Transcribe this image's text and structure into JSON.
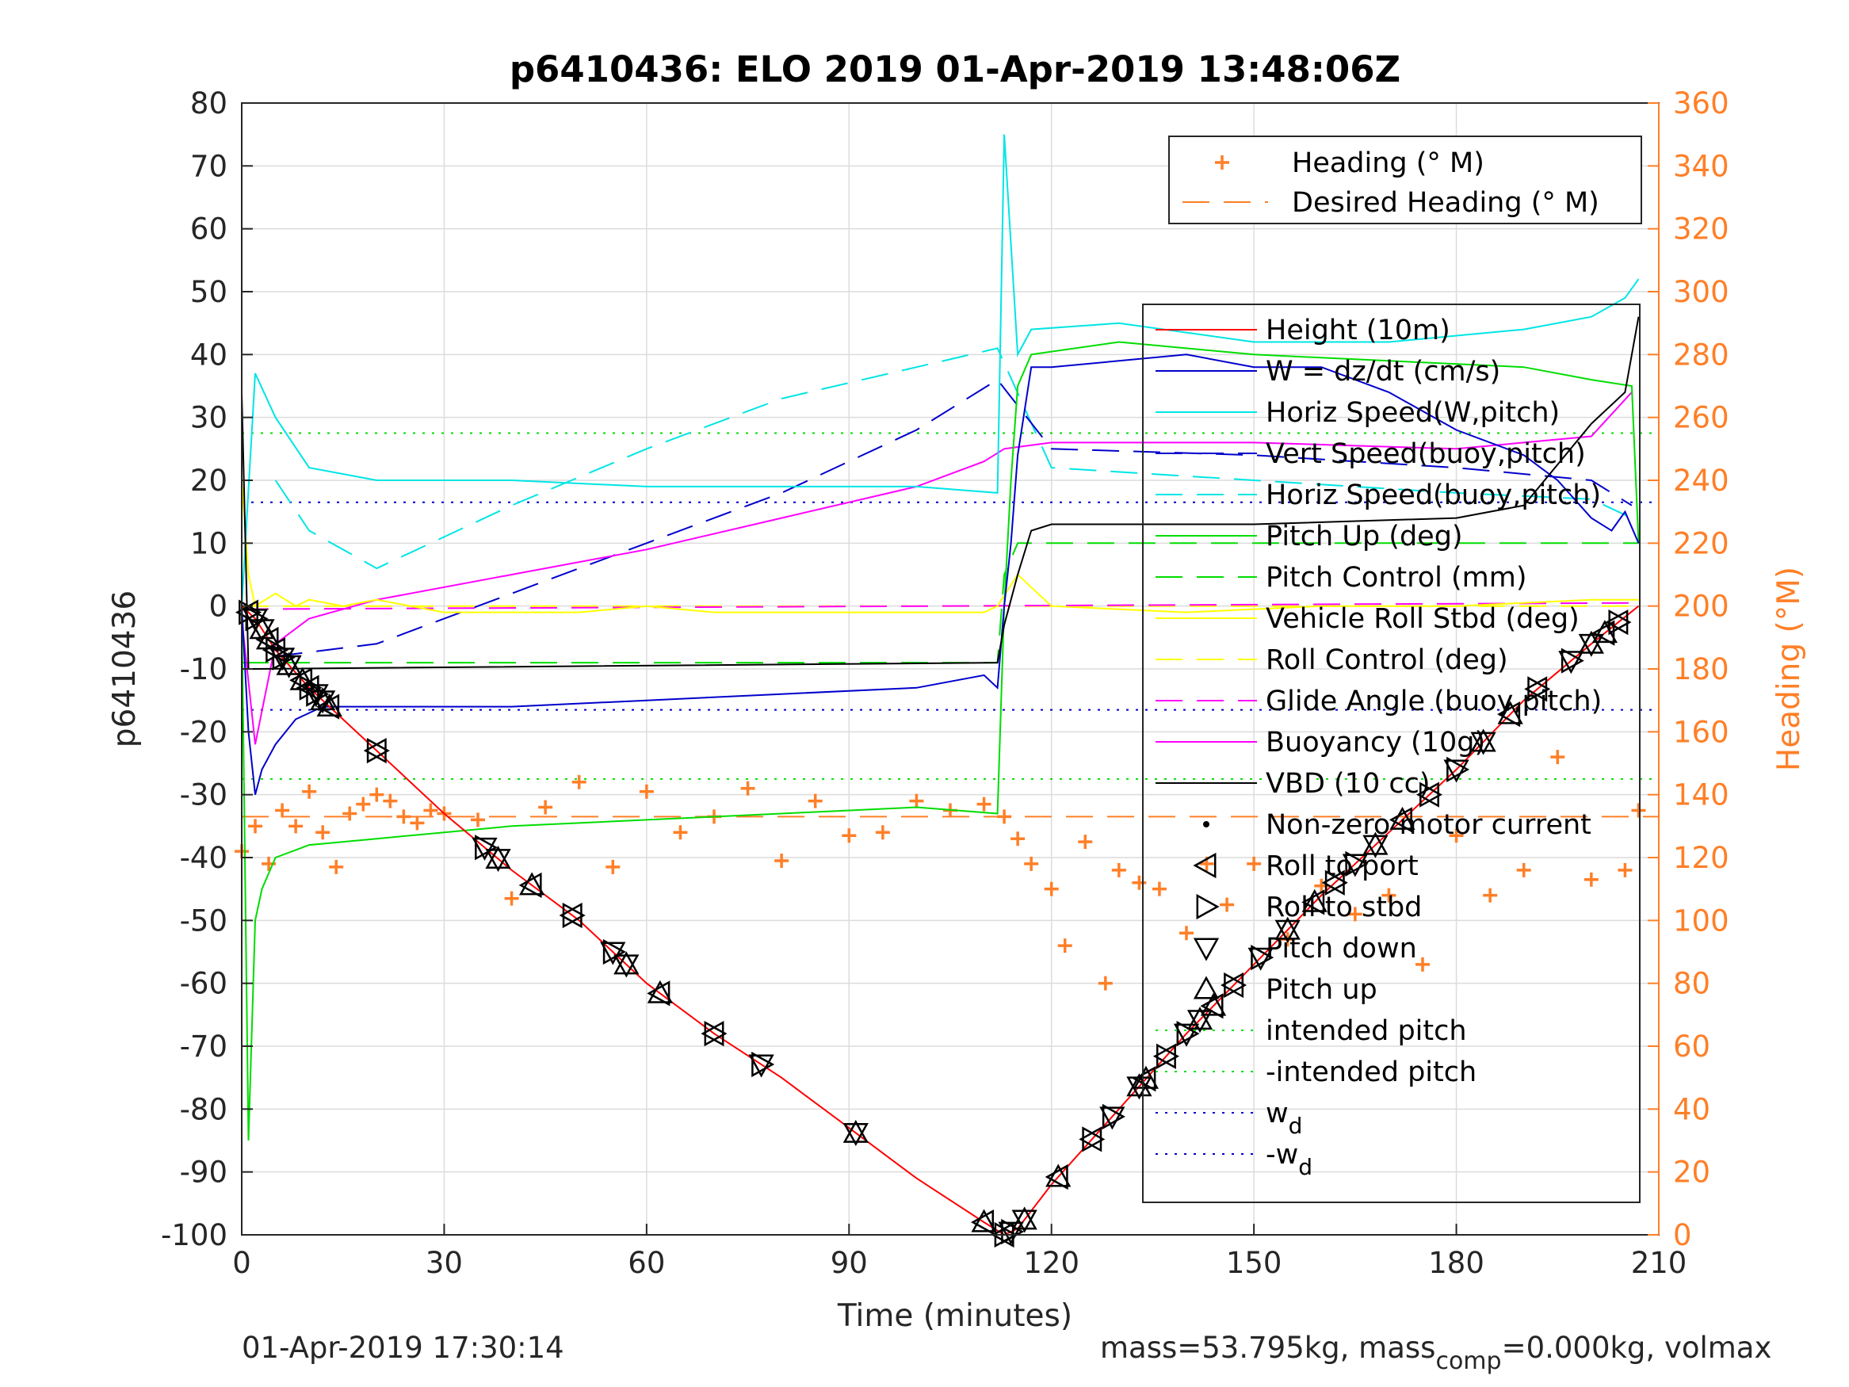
{
  "chart_data": {
    "type": "line",
    "title": "p6410436: ELO 2019 01-Apr-2019 13:48:06Z",
    "xlabel": "Time (minutes)",
    "ylabel": "p6410436",
    "y2label": "Heading (°M)",
    "xlim": [
      0,
      210
    ],
    "ylim": [
      -100,
      80
    ],
    "y2lim": [
      0,
      360
    ],
    "xticks": [
      "0",
      "30",
      "60",
      "90",
      "120",
      "150",
      "180",
      "210"
    ],
    "yticks": [
      "80",
      "70",
      "60",
      "50",
      "40",
      "30",
      "20",
      "10",
      "0",
      "-10",
      "-20",
      "-30",
      "-40",
      "-50",
      "-60",
      "-70",
      "-80",
      "-90",
      "-100"
    ],
    "y2ticks": [
      "360",
      "340",
      "320",
      "300",
      "280",
      "260",
      "240",
      "220",
      "200",
      "180",
      "160",
      "140",
      "120",
      "100",
      "80",
      "60",
      "40",
      "20",
      "0"
    ],
    "grid": true,
    "colors": {
      "height": "#ff0000",
      "w": "#0000cc",
      "horiz_w": "#00e5e5",
      "vert_buoy": "#0000cc",
      "horiz_buoy": "#00e5e5",
      "pitch_up": "#00dd00",
      "pitch_control": "#00dd00",
      "roll": "#ffff00",
      "roll_control": "#ffff00",
      "glide": "#ff00ff",
      "buoyancy": "#ff00ff",
      "vbd": "#000000",
      "heading": "#ff7f27",
      "axis": "#000000"
    },
    "series": [
      {
        "key": "height",
        "name": "Height (10m)",
        "x": [
          0,
          2,
          5,
          10,
          20,
          30,
          40,
          50,
          60,
          70,
          80,
          90,
          100,
          110,
          113,
          115,
          120,
          130,
          140,
          150,
          160,
          170,
          180,
          190,
          200,
          207
        ],
        "y": [
          0,
          -2,
          -7,
          -13,
          -23,
          -33,
          -42,
          -50,
          -60,
          -68,
          -75,
          -83,
          -91,
          -98,
          -100,
          -99,
          -92,
          -80,
          -68,
          -57,
          -46,
          -36,
          -26,
          -15,
          -6,
          0
        ]
      },
      {
        "key": "w",
        "name": "W = dz/dt (cm/s)",
        "x": [
          0,
          1,
          2,
          3,
          5,
          8,
          12,
          20,
          40,
          60,
          80,
          100,
          110,
          112,
          113,
          114,
          115,
          117,
          120,
          130,
          140,
          150,
          160,
          170,
          180,
          190,
          195,
          200,
          203,
          205,
          207
        ],
        "y": [
          0,
          -20,
          -30,
          -26,
          -22,
          -18,
          -16,
          -16,
          -16,
          -15,
          -14,
          -13,
          -11,
          -13,
          0,
          10,
          24,
          38,
          38,
          39,
          40,
          38,
          38,
          34,
          28,
          24,
          20,
          14,
          12,
          15,
          10
        ]
      },
      {
        "key": "horiz_w",
        "name": "Horiz Speed(W,pitch)",
        "x": [
          0,
          2,
          5,
          10,
          20,
          40,
          60,
          80,
          100,
          112,
          113,
          115,
          117,
          130,
          150,
          170,
          190,
          200,
          205,
          207
        ],
        "y": [
          0,
          37,
          30,
          22,
          20,
          20,
          19,
          19,
          19,
          18,
          75,
          40,
          44,
          45,
          42,
          42,
          44,
          46,
          49,
          52
        ]
      },
      {
        "key": "vert_buoy",
        "name": "Vert Speed(buoy,pitch)",
        "x": [
          5,
          20,
          40,
          60,
          80,
          100,
          112,
          120,
          150,
          180,
          200,
          206
        ],
        "y": [
          -8,
          -6,
          2,
          10,
          18,
          28,
          36,
          25,
          24,
          22,
          20,
          16
        ]
      },
      {
        "key": "horiz_buoy",
        "name": "Horiz Speed(buoy,pitch)",
        "x": [
          5,
          10,
          20,
          40,
          60,
          80,
          100,
          112,
          120,
          150,
          180,
          200,
          206
        ],
        "y": [
          20,
          12,
          6,
          16,
          25,
          33,
          38,
          41,
          22,
          20,
          18,
          17,
          14
        ]
      },
      {
        "key": "pitch_up",
        "name": "Pitch Up (deg)",
        "x": [
          0,
          1,
          2,
          3,
          5,
          10,
          20,
          40,
          60,
          80,
          100,
          112,
          113,
          114,
          115,
          117,
          130,
          150,
          170,
          190,
          200,
          206,
          207
        ],
        "y": [
          0,
          -85,
          -50,
          -45,
          -40,
          -38,
          -37,
          -35,
          -34,
          -33,
          -32,
          -33,
          0,
          20,
          35,
          40,
          42,
          40,
          39,
          38,
          36,
          35,
          10
        ]
      },
      {
        "key": "pitch_control",
        "name": "Pitch Control (mm)",
        "x": [
          0,
          10,
          60,
          110,
          112,
          113,
          115,
          150,
          200,
          207
        ],
        "y": [
          -9,
          -9,
          -9,
          -9,
          -9,
          5,
          10,
          10,
          10,
          10
        ]
      },
      {
        "key": "roll",
        "name": "Vehicle Roll Stbd (deg)",
        "x": [
          0,
          1,
          2,
          5,
          8,
          10,
          15,
          20,
          30,
          40,
          50,
          60,
          70,
          80,
          90,
          100,
          110,
          112,
          115,
          120,
          140,
          160,
          180,
          200,
          207
        ],
        "y": [
          20,
          5,
          0,
          2,
          0,
          1,
          0,
          1,
          -1,
          -1,
          -1,
          0,
          -1,
          -1,
          -1,
          -1,
          -1,
          0,
          5,
          0,
          -1,
          0,
          0,
          1,
          1
        ]
      },
      {
        "key": "roll_control",
        "name": "Roll Control (deg)",
        "x": [
          0,
          60,
          112,
          113,
          150,
          207
        ],
        "y": [
          0,
          0,
          0,
          0,
          0,
          0
        ]
      },
      {
        "key": "glide",
        "name": "Glide Angle (buoy,pitch)",
        "x": [
          0,
          207
        ],
        "y": [
          -0.5,
          0.5
        ]
      },
      {
        "key": "buoyancy",
        "name": "Buoyancy (10g)",
        "x": [
          0,
          2,
          5,
          10,
          20,
          40,
          60,
          80,
          100,
          110,
          113,
          120,
          150,
          180,
          200,
          206
        ],
        "y": [
          -2,
          -22,
          -6,
          -2,
          1,
          5,
          9,
          14,
          19,
          23,
          25,
          26,
          26,
          25,
          27,
          34
        ]
      },
      {
        "key": "vbd",
        "name": "VBD (10 cc)",
        "x": [
          0,
          1,
          2,
          112,
          113,
          115,
          117,
          120,
          150,
          180,
          190,
          200,
          205,
          207
        ],
        "y": [
          34,
          -10,
          -10,
          -9,
          -3,
          5,
          12,
          13,
          13,
          14,
          16,
          29,
          34,
          46
        ]
      }
    ],
    "heading": {
      "name": "Heading (° M)",
      "desired_name": "Desired Heading (° M)",
      "desired": 133,
      "x": [
        0,
        2,
        4,
        6,
        8,
        10,
        12,
        14,
        16,
        18,
        20,
        22,
        24,
        26,
        28,
        30,
        35,
        40,
        45,
        50,
        55,
        60,
        65,
        70,
        75,
        80,
        85,
        90,
        95,
        100,
        105,
        110,
        113,
        115,
        117,
        120,
        122,
        125,
        128,
        130,
        133,
        136,
        140,
        143,
        146,
        150,
        155,
        160,
        165,
        170,
        175,
        180,
        185,
        190,
        195,
        200,
        205,
        207
      ],
      "y": [
        122,
        130,
        118,
        135,
        130,
        141,
        128,
        117,
        134,
        137,
        140,
        138,
        133,
        131,
        135,
        134,
        132,
        107,
        136,
        144,
        117,
        141,
        128,
        133,
        142,
        119,
        138,
        127,
        128,
        138,
        135,
        137,
        133,
        126,
        118,
        110,
        92,
        125,
        80,
        116,
        112,
        110,
        96,
        118,
        105,
        118,
        94,
        111,
        102,
        108,
        86,
        127,
        108,
        116,
        152,
        113,
        116,
        135
      ]
    },
    "legend_top": {
      "position": "top-right",
      "entries": [
        {
          "label": "Heading (° M)",
          "symbol": "plus"
        },
        {
          "label": "Desired Heading (° M)",
          "symbol": "dash"
        }
      ]
    },
    "legend_main": {
      "position": "right",
      "entries": [
        {
          "label": "Height (10m)",
          "color": "#ff0000",
          "symbol": "solid"
        },
        {
          "label": "W = dz/dt (cm/s)",
          "color": "#0000cc",
          "symbol": "solid"
        },
        {
          "label": "Horiz Speed(W,pitch)",
          "color": "#00e5e5",
          "symbol": "solid"
        },
        {
          "label": "Vert Speed(buoy,pitch)",
          "color": "#0000cc",
          "symbol": "dash"
        },
        {
          "label": "Horiz Speed(buoy,pitch)",
          "color": "#00e5e5",
          "symbol": "dash"
        },
        {
          "label": "Pitch Up (deg)",
          "color": "#00dd00",
          "symbol": "solid"
        },
        {
          "label": "Pitch Control (mm)",
          "color": "#00dd00",
          "symbol": "dash"
        },
        {
          "label": "Vehicle Roll Stbd (deg)",
          "color": "#ffff00",
          "symbol": "solid"
        },
        {
          "label": "Roll Control (deg)",
          "color": "#ffff00",
          "symbol": "dash"
        },
        {
          "label": "Glide Angle (buoy,pitch)",
          "color": "#ff00ff",
          "symbol": "dash"
        },
        {
          "label": "Buoyancy (10g)",
          "color": "#ff00ff",
          "symbol": "solid"
        },
        {
          "label": "VBD (10 cc)",
          "color": "#000000",
          "symbol": "solid"
        },
        {
          "label": "Non-zero motor current",
          "color": "#000000",
          "symbol": "dot"
        },
        {
          "label": "Roll to port",
          "color": "#000000",
          "symbol": "tri-left"
        },
        {
          "label": "Roll to stbd",
          "color": "#000000",
          "symbol": "tri-right"
        },
        {
          "label": "Pitch down",
          "color": "#000000",
          "symbol": "tri-down"
        },
        {
          "label": "Pitch up",
          "color": "#000000",
          "symbol": "tri-up"
        },
        {
          "label": "intended pitch",
          "color": "#00dd00",
          "symbol": "dot-line"
        },
        {
          "label": "-intended pitch",
          "color": "#00dd00",
          "symbol": "dot-line"
        },
        {
          "label": "w",
          "sub": "d",
          "color": "#0000cc",
          "symbol": "dot-line"
        },
        {
          "label": "-w",
          "sub": "d",
          "color": "#0000cc",
          "symbol": "dot-line"
        }
      ]
    },
    "ref_lines": [
      {
        "name": "intended pitch",
        "y": 27.5,
        "color": "#00dd00"
      },
      {
        "name": "-intended pitch",
        "y": -27.5,
        "color": "#00dd00"
      },
      {
        "name": "w_d",
        "y": 16.5,
        "color": "#0000cc"
      },
      {
        "name": "-w_d",
        "y": -16.5,
        "color": "#0000cc"
      }
    ],
    "markers": {
      "triangles_x": [
        1,
        2,
        3,
        4,
        5,
        6,
        7,
        9,
        10,
        11,
        12,
        13,
        20,
        36,
        38,
        43,
        49,
        55,
        57,
        62,
        70,
        77,
        91,
        110,
        113,
        114,
        116,
        121,
        126,
        129,
        133,
        134,
        137,
        140,
        142,
        144,
        147,
        151,
        155,
        159,
        162,
        165,
        168,
        172,
        176,
        180,
        184,
        188,
        192,
        197,
        200,
        202,
        204
      ]
    },
    "footer": {
      "left": "01-Apr-2019 17:30:14",
      "right_main": "mass=53.795kg, mass",
      "right_sub": "comp",
      "right_tail": "=0.000kg, volmax"
    }
  }
}
